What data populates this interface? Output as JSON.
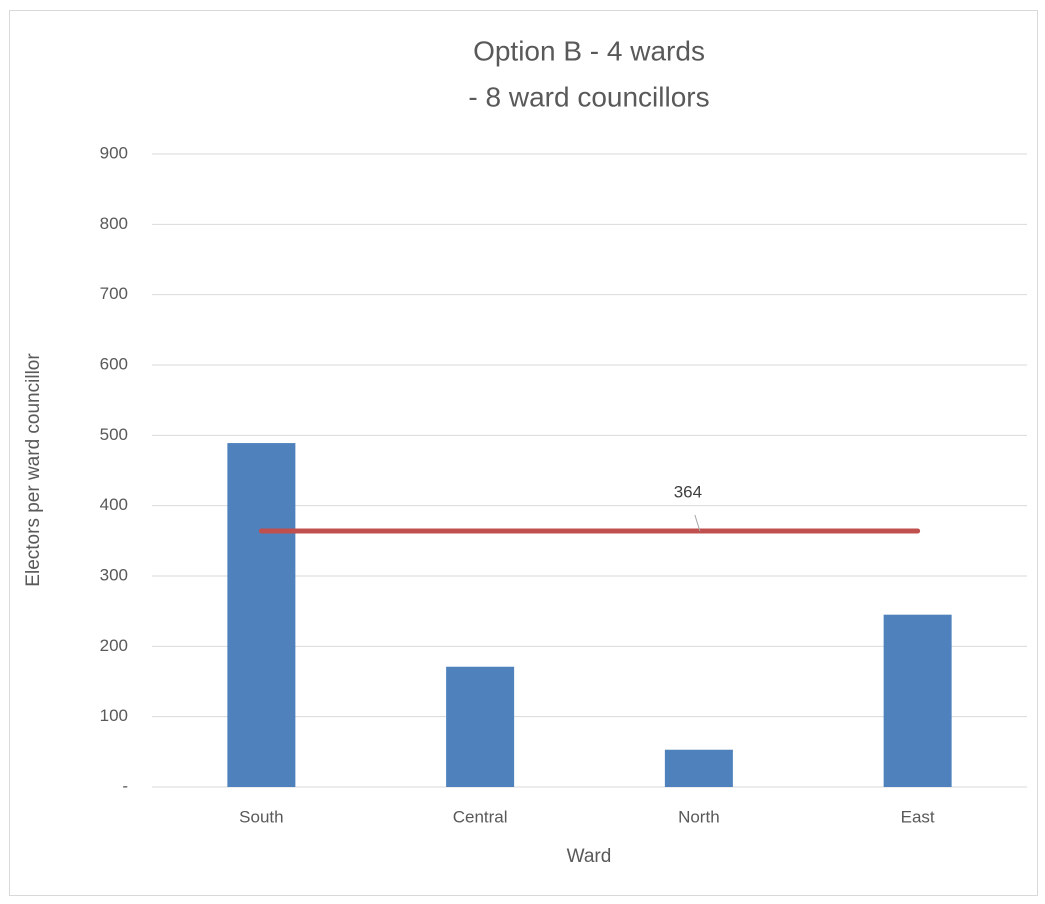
{
  "chart_data": {
    "type": "bar",
    "title": [
      "Option B - 4 wards",
      "- 8 ward councillors"
    ],
    "x_label": "Ward",
    "y_label": "Electors per ward councillor",
    "categories": [
      "South",
      "Central",
      "North",
      "East"
    ],
    "series": [
      {
        "type": "bar",
        "color": "#4f81bd",
        "values": [
          489,
          171,
          53,
          245
        ]
      },
      {
        "type": "line",
        "color": "#c0504d",
        "values": [
          364,
          364,
          364,
          364
        ],
        "value_labels": [
          null,
          null,
          "364",
          null
        ]
      }
    ],
    "ylim": [
      0,
      900
    ],
    "yticks": [
      {
        "value": 0,
        "label": "-"
      },
      100,
      200,
      300,
      400,
      500,
      600,
      700,
      800,
      900
    ],
    "grid": true
  }
}
